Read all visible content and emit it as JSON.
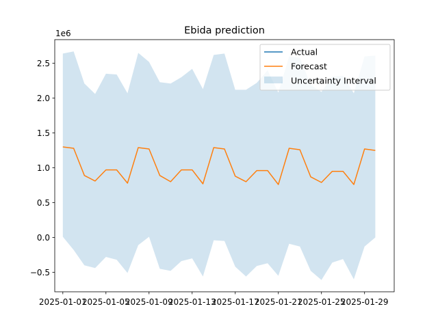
{
  "chart_data": {
    "type": "line",
    "title": "Ebida prediction",
    "xlabel": "",
    "ylabel": "",
    "y_offset_label": "1e6",
    "x_tick_labels": [
      "2025-01-01",
      "2025-01-05",
      "2025-01-09",
      "2025-01-13",
      "2025-01-17",
      "2025-01-21",
      "2025-01-25",
      "2025-01-29"
    ],
    "x_tick_days": [
      1,
      5,
      9,
      13,
      17,
      21,
      25,
      29
    ],
    "y_tick_labels": [
      "−0.5",
      "0.0",
      "0.5",
      "1.0",
      "1.5",
      "2.0",
      "2.5"
    ],
    "y_tick_values": [
      -0.5,
      0.0,
      0.5,
      1.0,
      1.5,
      2.0,
      2.5
    ],
    "xlim_days": [
      0.25,
      31.75
    ],
    "ylim": [
      -0.78,
      2.84
    ],
    "x_days": [
      1,
      2,
      3,
      4,
      5,
      6,
      7,
      8,
      9,
      10,
      11,
      12,
      13,
      14,
      15,
      16,
      17,
      18,
      19,
      20,
      21,
      22,
      23,
      24,
      25,
      26,
      27,
      28,
      29,
      30
    ],
    "series": [
      {
        "name": "Actual",
        "color": "#1f77b4",
        "values": []
      },
      {
        "name": "Forecast",
        "color": "#ff7f0e",
        "values": [
          1.3,
          1.28,
          0.89,
          0.81,
          0.97,
          0.97,
          0.78,
          1.29,
          1.27,
          0.89,
          0.8,
          0.97,
          0.97,
          0.77,
          1.29,
          1.27,
          0.88,
          0.8,
          0.96,
          0.96,
          0.76,
          1.28,
          1.26,
          0.87,
          0.79,
          0.95,
          0.95,
          0.76,
          1.27,
          1.25
        ]
      }
    ],
    "uncertainty": {
      "name": "Uncertainty Interval",
      "color": "#1f77b4",
      "upper": [
        2.64,
        2.67,
        2.21,
        2.06,
        2.35,
        2.34,
        2.07,
        2.65,
        2.52,
        2.23,
        2.21,
        2.3,
        2.42,
        2.13,
        2.62,
        2.64,
        2.12,
        2.12,
        2.22,
        2.4,
        2.08,
        2.6,
        2.58,
        2.19,
        2.09,
        2.31,
        2.32,
        2.07,
        2.6,
        2.61
      ],
      "lower": [
        0.01,
        -0.18,
        -0.4,
        -0.44,
        -0.28,
        -0.32,
        -0.51,
        -0.11,
        0.01,
        -0.45,
        -0.48,
        -0.34,
        -0.3,
        -0.56,
        -0.04,
        -0.05,
        -0.42,
        -0.56,
        -0.41,
        -0.37,
        -0.55,
        -0.09,
        -0.13,
        -0.48,
        -0.61,
        -0.36,
        -0.31,
        -0.6,
        -0.13,
        0.0
      ]
    },
    "grid": false,
    "legend_position": "top-right"
  }
}
